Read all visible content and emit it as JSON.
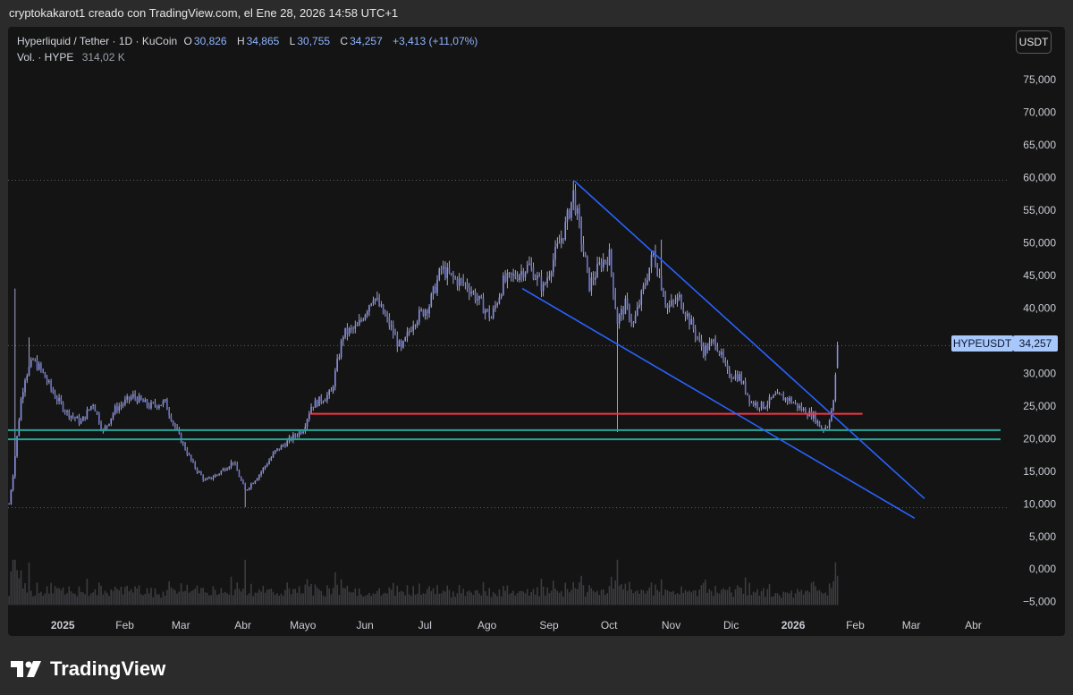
{
  "header": {
    "attribution": "cryptokakarot1 creado con TradingView.com, el Ene 28, 2026 14:58 UTC+1"
  },
  "legend": {
    "symbol": "Hyperliquid / Tether · 1D · KuCoin",
    "open_label": "O",
    "open": "30,826",
    "high_label": "H",
    "high": "34,865",
    "low_label": "L",
    "low": "30,755",
    "close_label": "C",
    "close": "34,257",
    "change": "+3,413 (+11,07%)",
    "volume_label": "Vol. · HYPE",
    "volume": "314,02 K"
  },
  "price_axis": {
    "currency": "USDT",
    "ticks": [
      "75,000",
      "70,000",
      "65,000",
      "60,000",
      "55,000",
      "50,000",
      "45,000",
      "40,000",
      "35,000",
      "30,000",
      "25,000",
      "20,000",
      "15,000",
      "10,000",
      "5,000",
      "0,000",
      "−5,000"
    ]
  },
  "price_label": {
    "symbol": "HYPEUSDT",
    "value": "34,257"
  },
  "time_axis": {
    "labels": [
      "2025",
      "Feb",
      "Mar",
      "Abr",
      "Mayo",
      "Jun",
      "Jul",
      "Ago",
      "Sep",
      "Oct",
      "Nov",
      "Dic",
      "2026",
      "Feb",
      "Mar",
      "Abr"
    ]
  },
  "brand": {
    "name": "TradingView"
  },
  "colors": {
    "candle": "#8c93e8",
    "candle_wick": "#c4c8f5",
    "resistance_line": "#f23645",
    "support_line": "#26a69a",
    "channel_line": "#2962ff",
    "price_label_bg": "#a8c7fa"
  },
  "chart_data": {
    "type": "candlestick",
    "ylim": [
      -6,
      79
    ],
    "x_range": [
      "2024-12-10",
      "2026-04-20"
    ],
    "price_anchors": [
      [
        "2024-12-10",
        10.0
      ],
      [
        "2024-12-12",
        14.5
      ],
      [
        "2024-12-16",
        26.0
      ],
      [
        "2024-12-18",
        29.5
      ],
      [
        "2024-12-22",
        32.0
      ],
      [
        "2024-12-26",
        30.5
      ],
      [
        "2025-01-02",
        26.5
      ],
      [
        "2025-01-08",
        24.0
      ],
      [
        "2025-01-15",
        22.5
      ],
      [
        "2025-01-21",
        25.5
      ],
      [
        "2025-01-26",
        21.0
      ],
      [
        "2025-02-01",
        24.5
      ],
      [
        "2025-02-10",
        26.5
      ],
      [
        "2025-02-18",
        25.0
      ],
      [
        "2025-02-26",
        25.5
      ],
      [
        "2025-03-04",
        21.0
      ],
      [
        "2025-03-12",
        16.0
      ],
      [
        "2025-03-18",
        13.5
      ],
      [
        "2025-03-24",
        14.5
      ],
      [
        "2025-04-01",
        16.5
      ],
      [
        "2025-04-07",
        12.0
      ],
      [
        "2025-04-14",
        14.5
      ],
      [
        "2025-04-22",
        18.0
      ],
      [
        "2025-04-30",
        20.0
      ],
      [
        "2025-05-06",
        21.5
      ],
      [
        "2025-05-10",
        25.0
      ],
      [
        "2025-05-20",
        27.0
      ],
      [
        "2025-05-26",
        36.0
      ],
      [
        "2025-06-02",
        37.0
      ],
      [
        "2025-06-10",
        42.0
      ],
      [
        "2025-06-18",
        37.5
      ],
      [
        "2025-06-24",
        33.5
      ],
      [
        "2025-06-30",
        38.0
      ],
      [
        "2025-07-08",
        40.5
      ],
      [
        "2025-07-14",
        46.0
      ],
      [
        "2025-07-20",
        44.5
      ],
      [
        "2025-07-27",
        43.5
      ],
      [
        "2025-08-02",
        41.0
      ],
      [
        "2025-08-08",
        38.5
      ],
      [
        "2025-08-14",
        44.0
      ],
      [
        "2025-08-20",
        45.0
      ],
      [
        "2025-08-27",
        46.5
      ],
      [
        "2025-09-03",
        43.0
      ],
      [
        "2025-09-08",
        47.5
      ],
      [
        "2025-09-14",
        52.5
      ],
      [
        "2025-09-18",
        57.5
      ],
      [
        "2025-09-22",
        50.5
      ],
      [
        "2025-09-26",
        43.5
      ],
      [
        "2025-10-02",
        47.0
      ],
      [
        "2025-10-06",
        48.0
      ],
      [
        "2025-10-10",
        38.0
      ],
      [
        "2025-10-14",
        40.5
      ],
      [
        "2025-10-18",
        37.5
      ],
      [
        "2025-10-24",
        44.0
      ],
      [
        "2025-10-28",
        48.5
      ],
      [
        "2025-11-04",
        40.0
      ],
      [
        "2025-11-10",
        41.5
      ],
      [
        "2025-11-16",
        37.5
      ],
      [
        "2025-11-22",
        33.5
      ],
      [
        "2025-11-28",
        35.0
      ],
      [
        "2025-12-04",
        30.0
      ],
      [
        "2025-12-10",
        29.5
      ],
      [
        "2025-12-16",
        25.5
      ],
      [
        "2025-12-22",
        25.0
      ],
      [
        "2025-12-28",
        26.5
      ],
      [
        "2026-01-04",
        26.0
      ],
      [
        "2026-01-10",
        24.5
      ],
      [
        "2026-01-16",
        23.5
      ],
      [
        "2026-01-20",
        21.5
      ],
      [
        "2026-01-23",
        22.0
      ],
      [
        "2026-01-26",
        25.5
      ],
      [
        "2026-01-28",
        34.26
      ]
    ],
    "spikes": [
      {
        "date": "2024-12-13",
        "high": 43.0
      },
      {
        "date": "2025-04-07",
        "low": 9.5
      },
      {
        "date": "2025-10-10",
        "low": 21.0
      },
      {
        "date": "2025-11-01",
        "high": 50.5
      },
      {
        "date": "2025-09-18",
        "high": 59.5
      },
      {
        "date": "2024-12-20",
        "high": 35.5
      }
    ],
    "levels": [
      {
        "kind": "resistance",
        "value": 23.8,
        "from": "2025-05-10",
        "to": "2026-02-10"
      },
      {
        "kind": "support",
        "value": 21.3,
        "from": "2024-12-10",
        "to": "2026-04-20"
      },
      {
        "kind": "support",
        "value": 19.9,
        "from": "2024-12-10",
        "to": "2026-04-20"
      }
    ],
    "trendlines": [
      {
        "from": [
          "2025-09-19",
          59.5
        ],
        "to": [
          "2026-03-13",
          10.8
        ]
      },
      {
        "from": [
          "2025-08-24",
          43.0
        ],
        "to": [
          "2026-03-08",
          7.8
        ]
      }
    ],
    "dotted_levels": [
      59.6,
      34.26,
      9.4
    ],
    "last_close": 34.26,
    "volume_scale_max": 7.3
  }
}
